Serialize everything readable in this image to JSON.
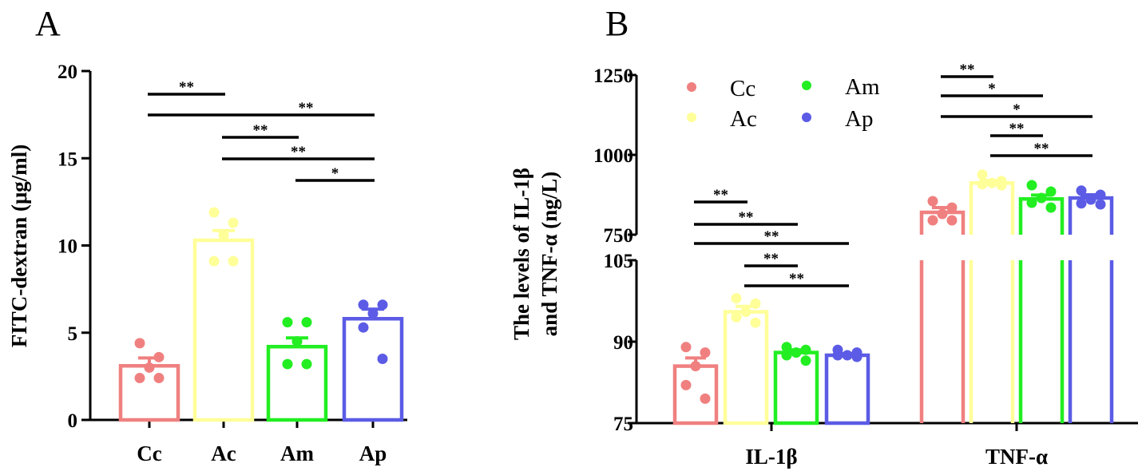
{
  "chart_data": [
    {
      "panel_label": "A",
      "type": "bar",
      "ylabel": "FITC-dextran (μg/ml)",
      "ylim": [
        0,
        20
      ],
      "yticks": [
        0,
        5,
        10,
        15,
        20
      ],
      "categories": [
        "Cc",
        "Ac",
        "Am",
        "Ap"
      ],
      "colors": [
        "#F08080",
        "#FFFF99",
        "#22EE22",
        "#5B5BE6"
      ],
      "means": [
        3.1,
        10.3,
        4.2,
        5.8
      ],
      "sem": [
        0.45,
        0.55,
        0.5,
        0.55
      ],
      "points": [
        [
          4.4,
          3.6,
          3.0,
          2.4,
          2.4
        ],
        [
          11.9,
          11.3,
          10.6,
          9.1,
          9.1
        ],
        [
          5.6,
          5.6,
          4.5,
          3.2,
          3.2
        ],
        [
          6.6,
          6.6,
          6.1,
          5.3,
          3.5
        ]
      ],
      "comparisons": [
        {
          "from": 0,
          "to": 1,
          "label": "**"
        },
        {
          "from": 0,
          "to": 3,
          "label": "**"
        },
        {
          "from": 1,
          "to": 2,
          "label": "**"
        },
        {
          "from": 1,
          "to": 3,
          "label": "**"
        },
        {
          "from": 2,
          "to": 3,
          "label": "*"
        }
      ]
    },
    {
      "panel_label": "B",
      "type": "bar",
      "ylabel_line1": "The levels of IL-1β",
      "ylabel_line2": "and TNF-α (ng/L)",
      "axis_break": true,
      "lower_segment": {
        "ylim": [
          75,
          105
        ],
        "yticks": [
          75,
          90,
          105
        ]
      },
      "upper_segment": {
        "ylim": [
          750,
          1250
        ],
        "yticks": [
          750,
          1000,
          1250
        ]
      },
      "categories": [
        "IL-1β",
        "TNF-α"
      ],
      "series": [
        {
          "name": "Cc",
          "color": "#F08080",
          "values": [
            85.5,
            820
          ],
          "sem": [
            1.5,
            15
          ],
          "points": [
            [
              89,
              88,
              85.5,
              82,
              79.5
            ],
            [
              855,
              835,
              815,
              795,
              795
            ]
          ]
        },
        {
          "name": "Ac",
          "color": "#FFFF99",
          "values": [
            95.5,
            912
          ],
          "sem": [
            1.0,
            8
          ],
          "points": [
            [
              98,
              97,
              95.5,
              94.5,
              93.5
            ],
            [
              938,
              918,
              912,
              908,
              905
            ]
          ]
        },
        {
          "name": "Am",
          "color": "#22EE22",
          "values": [
            88,
            862
          ],
          "sem": [
            0.5,
            12
          ],
          "points": [
            [
              89,
              88.5,
              88,
              87.5,
              86.5
            ],
            [
              905,
              885,
              865,
              850,
              835
            ]
          ]
        },
        {
          "name": "Ap",
          "color": "#5B5BE6",
          "values": [
            87.5,
            865
          ],
          "sem": [
            0.3,
            10
          ],
          "points": [
            [
              88.5,
              88,
              87.5,
              87.5,
              87.2
            ],
            [
              888,
              875,
              860,
              848,
              845
            ]
          ]
        }
      ],
      "comparisons": [
        {
          "category": 0,
          "from": 0,
          "to": 1,
          "label": "**"
        },
        {
          "category": 0,
          "from": 0,
          "to": 2,
          "label": "**"
        },
        {
          "category": 0,
          "from": 0,
          "to": 3,
          "label": "**"
        },
        {
          "category": 0,
          "from": 1,
          "to": 2,
          "label": "**"
        },
        {
          "category": 0,
          "from": 1,
          "to": 3,
          "label": "**"
        },
        {
          "category": 1,
          "from": 0,
          "to": 1,
          "label": "**"
        },
        {
          "category": 1,
          "from": 0,
          "to": 2,
          "label": "*"
        },
        {
          "category": 1,
          "from": 0,
          "to": 3,
          "label": "*"
        },
        {
          "category": 1,
          "from": 1,
          "to": 2,
          "label": "**"
        },
        {
          "category": 1,
          "from": 1,
          "to": 3,
          "label": "**"
        }
      ],
      "legend": [
        "Cc",
        "Ac",
        "Am",
        "Ap"
      ]
    }
  ]
}
